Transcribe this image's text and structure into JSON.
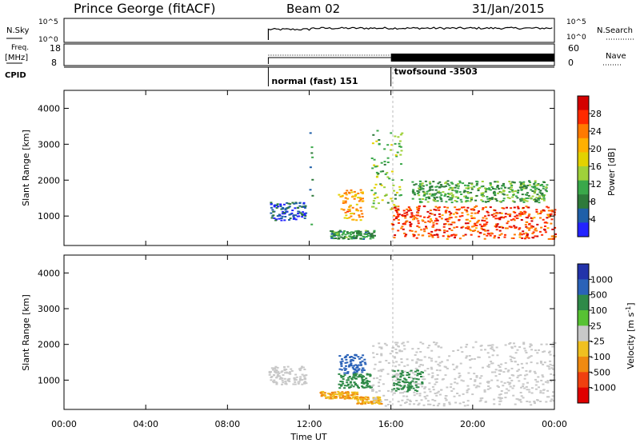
{
  "header": {
    "station": "Prince George (fitACF)",
    "beam": "Beam 02",
    "date": "31/Jan/2015"
  },
  "top_panels": {
    "nsky_label": "N.Sky",
    "nsky_ticks": [
      "10^5",
      "10^0"
    ],
    "nsearch_label": "N.Search",
    "nsearch_ticks": [
      "10^5",
      "10^0"
    ],
    "freq_label": "Freq.",
    "freq_unit": "[MHz]",
    "freq_ticks": [
      "18",
      "8"
    ],
    "nave_label": "Nave",
    "nave_ticks": [
      "60",
      "0"
    ],
    "cpid_label": "CPID"
  },
  "cpid_segments": [
    {
      "label": "normal (fast) 151",
      "start": "10:00",
      "end": "16:00"
    },
    {
      "label": "twofsound -3503",
      "start": "16:00",
      "end": "24:00"
    }
  ],
  "power_panel": {
    "ylabel": "Slant Range [km]",
    "yticks": [
      "4000",
      "3000",
      "2000",
      "1000"
    ],
    "colorbar": {
      "label": "Power [dB]",
      "ticks": [
        "28",
        "24",
        "20",
        "16",
        "12",
        "8",
        "4"
      ],
      "colors": [
        "#d40000",
        "#ff2a00",
        "#ff7a00",
        "#ffb000",
        "#e3d200",
        "#9fd13a",
        "#3aa84a",
        "#2e7a3a",
        "#1f5fa8",
        "#2323ff"
      ]
    }
  },
  "velocity_panel": {
    "ylabel": "Slant Range [km]",
    "yticks": [
      "4000",
      "3000",
      "2000",
      "1000"
    ],
    "colorbar": {
      "label": "Velocity [m s",
      "label_sup": "-1",
      "label_end": "]",
      "ticks": [
        "1000",
        "500",
        "100",
        "25",
        "-25",
        "-100",
        "-500",
        "-1000"
      ],
      "colors": [
        "#2233aa",
        "#2a62b8",
        "#2f8a48",
        "#57c233",
        "#c8c8c8",
        "#f0c020",
        "#f08a10",
        "#f04010",
        "#e00000"
      ]
    }
  },
  "x_axis": {
    "label": "Time UT",
    "ticks": [
      "00:00",
      "04:00",
      "08:00",
      "12:00",
      "16:00",
      "20:00",
      "00:00"
    ]
  },
  "chart_data": {
    "type": "heatmap",
    "title": "Prince George (fitACF)   Beam 02   31/Jan/2015",
    "xlabel": "Time UT",
    "ylabel": "Slant Range [km]",
    "xlim_hours": [
      0,
      24
    ],
    "ylim_km": [
      180,
      4500
    ],
    "power_regions": [
      {
        "t0": 10.0,
        "t1": 11.8,
        "r0": 900,
        "r1": 1400,
        "level": 6
      },
      {
        "t0": 12.0,
        "t1": 12.15,
        "r0": 700,
        "r1": 3500,
        "level": 8
      },
      {
        "t0": 13.4,
        "t1": 14.6,
        "r0": 900,
        "r1": 1750,
        "level": 22
      },
      {
        "t0": 13.0,
        "t1": 15.2,
        "r0": 380,
        "r1": 620,
        "level": 10
      },
      {
        "t0": 15.0,
        "t1": 16.5,
        "r0": 1200,
        "r1": 3400,
        "level": 14
      },
      {
        "t0": 16.0,
        "t1": 24.0,
        "r0": 380,
        "r1": 1300,
        "level": 26
      },
      {
        "t0": 17.0,
        "t1": 23.6,
        "r0": 1400,
        "r1": 2000,
        "level": 12
      }
    ],
    "velocity_regions": [
      {
        "t0": 10.0,
        "t1": 11.8,
        "r0": 900,
        "r1": 1400,
        "vel": 0
      },
      {
        "t0": 13.4,
        "t1": 14.7,
        "r0": 1200,
        "r1": 1750,
        "vel": 600
      },
      {
        "t0": 13.4,
        "t1": 15.0,
        "r0": 800,
        "r1": 1200,
        "vel": 100
      },
      {
        "t0": 12.5,
        "t1": 14.3,
        "r0": 500,
        "r1": 700,
        "vel": -100
      },
      {
        "t0": 14.3,
        "t1": 15.5,
        "r0": 350,
        "r1": 550,
        "vel": -100
      },
      {
        "t0": 15.0,
        "t1": 24.0,
        "r0": 300,
        "r1": 2100,
        "vel": 0
      },
      {
        "t0": 16.0,
        "t1": 17.5,
        "r0": 700,
        "r1": 1300,
        "vel": 100
      }
    ]
  }
}
